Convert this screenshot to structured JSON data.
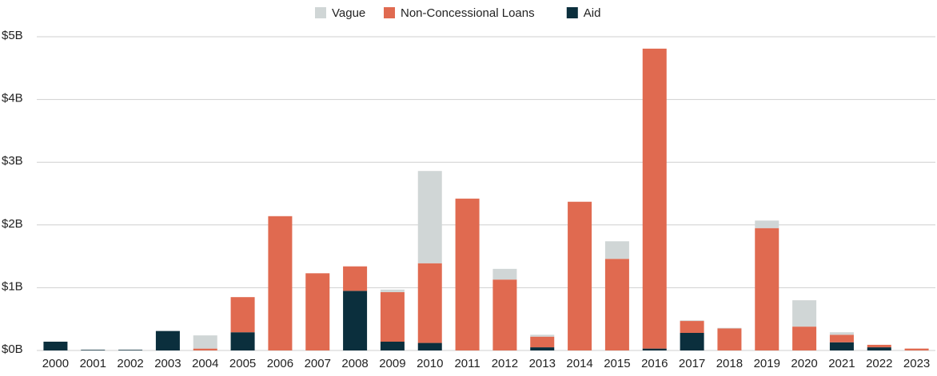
{
  "chart_data": {
    "type": "stacked_bar",
    "categories": [
      "2000",
      "2001",
      "2002",
      "2003",
      "2004",
      "2005",
      "2006",
      "2007",
      "2008",
      "2009",
      "2010",
      "2011",
      "2012",
      "2013",
      "2014",
      "2015",
      "2016",
      "2017",
      "2018",
      "2019",
      "2020",
      "2021",
      "2022",
      "2023"
    ],
    "series": [
      {
        "name": "Aid",
        "color": "#0b2f3d",
        "values": [
          0.14,
          0.01,
          0.01,
          0.31,
          0,
          0.29,
          0,
          0,
          0.95,
          0.14,
          0.12,
          0,
          0,
          0.05,
          0,
          0,
          0.03,
          0.28,
          0,
          0,
          0,
          0.13,
          0.05,
          0
        ]
      },
      {
        "name": "Non-Concessional Loans",
        "color": "#e06a50",
        "values": [
          0,
          0,
          0,
          0,
          0.03,
          0.56,
          2.14,
          1.23,
          0.39,
          0.79,
          1.27,
          2.42,
          1.13,
          0.17,
          2.37,
          1.46,
          4.78,
          0.19,
          0.35,
          1.95,
          0.38,
          0.12,
          0.04,
          0.03
        ]
      },
      {
        "name": "Vague",
        "color": "#d0d6d6",
        "values": [
          0,
          0,
          0,
          0,
          0.21,
          0,
          0,
          0,
          0,
          0.04,
          1.47,
          0,
          0.17,
          0.03,
          0,
          0.28,
          0,
          0.01,
          0.01,
          0.12,
          0.42,
          0.04,
          0,
          0
        ]
      }
    ],
    "legend_order": [
      "Vague",
      "Non-Concessional Loans",
      "Aid"
    ],
    "ylim": [
      0,
      5
    ],
    "yticks": [
      {
        "value": 0,
        "label": "$0B"
      },
      {
        "value": 1,
        "label": "$1B"
      },
      {
        "value": 2,
        "label": "$2B"
      },
      {
        "value": 3,
        "label": "$3B"
      },
      {
        "value": 4,
        "label": "$4B"
      },
      {
        "value": 5,
        "label": "$5B"
      }
    ],
    "grid": true,
    "legend": "top"
  }
}
